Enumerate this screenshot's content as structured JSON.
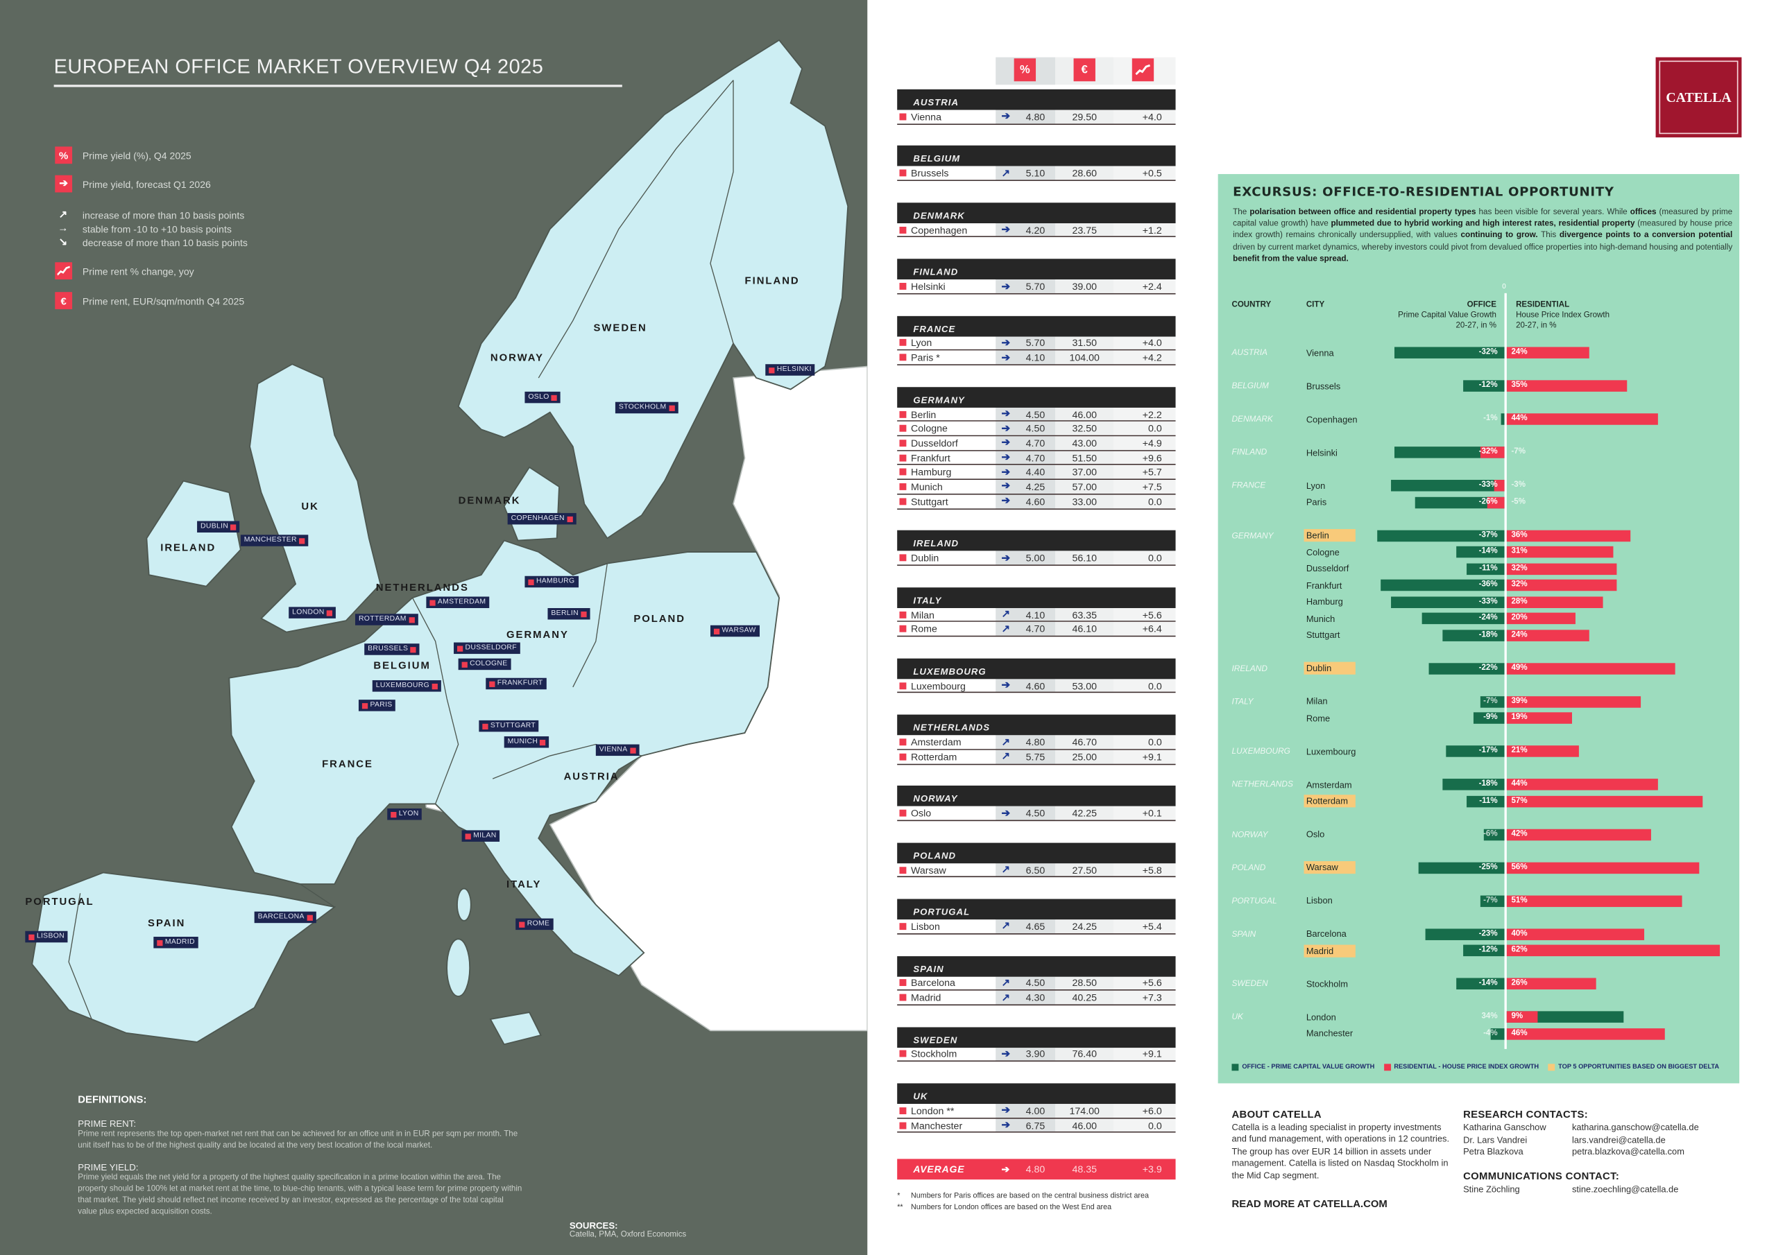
{
  "header": {
    "title": "EUROPEAN OFFICE MARKET OVERVIEW Q4 2025",
    "logo_text": "CATELLA"
  },
  "legend": {
    "prime_yield": {
      "icon": "%",
      "label": "Prime yield (%), Q4 2025"
    },
    "forecast": {
      "icon": "arrow-right-icon",
      "label": "Prime yield, forecast Q1 2026"
    },
    "increase": "increase of more than 10 basis points",
    "stable": "stable from -10 to +10 basis points",
    "decrease": "decrease of more than 10 basis points",
    "rent_change": {
      "icon": "trend-chart-icon",
      "label": "Prime rent % change, yoy"
    },
    "rent": {
      "icon": "€",
      "label": "Prime rent, EUR/sqm/month Q4 2025"
    }
  },
  "map": {
    "countries": [
      "FINLAND",
      "NORWAY",
      "SWEDEN",
      "DENMARK",
      "UK",
      "IRELAND",
      "NETHERLANDS",
      "GERMANY",
      "POLAND",
      "BELGIUM",
      "FRANCE",
      "AUSTRIA",
      "ITALY",
      "PORTUGAL",
      "SPAIN"
    ],
    "cities": [
      "HELSINKI",
      "OSLO",
      "STOCKHOLM",
      "COPENHAGEN",
      "DUBLIN",
      "MANCHESTER",
      "LONDON",
      "AMSTERDAM",
      "ROTTERDAM",
      "HAMBURG",
      "BERLIN",
      "WARSAW",
      "BRUSSELS",
      "DUSSELDORF",
      "COLOGNE",
      "LUXEMBOURG",
      "FRANKFURT",
      "PARIS",
      "STUTTGART",
      "MUNICH",
      "VIENNA",
      "LYON",
      "MILAN",
      "ROME",
      "BARCELONA",
      "MADRID",
      "LISBON"
    ]
  },
  "definitions": {
    "title": "DEFINITIONS:",
    "prime_rent_title": "PRIME RENT:",
    "prime_rent_text": "Prime rent represents the top open-market net rent that can be achieved for an office unit in in EUR per sqm per month. The unit itself has to be of the highest quality and be located at the very best location of the local market.",
    "prime_yield_title": "PRIME YIELD:",
    "prime_yield_text": "Prime yield equals the net yield for a property of the highest quality specification in a prime location within the area. The property should be 100% let at market rent at the time, to blue-chip tenants, with a typical lease term for prime property within that market. The yield should reflect net income received by an investor, expressed as the percentage of the total capital value plus expected acquisition costs."
  },
  "sources": {
    "title": "SOURCES:",
    "text": "Catella, PMA, Oxford Economics"
  },
  "table": {
    "header_icons": [
      "%",
      "€",
      "trend-chart-icon"
    ],
    "groups": [
      {
        "country": "AUSTRIA",
        "rows": [
          {
            "city": "Vienna",
            "arrow": "stable",
            "yield": "4.80",
            "rent": "29.50",
            "change": "+4.0"
          }
        ]
      },
      {
        "country": "BELGIUM",
        "rows": [
          {
            "city": "Brussels",
            "arrow": "up",
            "yield": "5.10",
            "rent": "28.60",
            "change": "+0.5"
          }
        ]
      },
      {
        "country": "DENMARK",
        "rows": [
          {
            "city": "Copenhagen",
            "arrow": "stable",
            "yield": "4.20",
            "rent": "23.75",
            "change": "+1.2"
          }
        ]
      },
      {
        "country": "FINLAND",
        "rows": [
          {
            "city": "Helsinki",
            "arrow": "stable",
            "yield": "5.70",
            "rent": "39.00",
            "change": "+2.4"
          }
        ]
      },
      {
        "country": "FRANCE",
        "rows": [
          {
            "city": "Lyon",
            "arrow": "stable",
            "yield": "5.70",
            "rent": "31.50",
            "change": "+4.0"
          },
          {
            "city": "Paris *",
            "arrow": "stable",
            "yield": "4.10",
            "rent": "104.00",
            "change": "+4.2"
          }
        ]
      },
      {
        "country": "GERMANY",
        "rows": [
          {
            "city": "Berlin",
            "arrow": "stable",
            "yield": "4.50",
            "rent": "46.00",
            "change": "+2.2"
          },
          {
            "city": "Cologne",
            "arrow": "stable",
            "yield": "4.50",
            "rent": "32.50",
            "change": "0.0"
          },
          {
            "city": "Dusseldorf",
            "arrow": "stable",
            "yield": "4.70",
            "rent": "43.00",
            "change": "+4.9"
          },
          {
            "city": "Frankfurt",
            "arrow": "stable",
            "yield": "4.70",
            "rent": "51.50",
            "change": "+9.6"
          },
          {
            "city": "Hamburg",
            "arrow": "stable",
            "yield": "4.40",
            "rent": "37.00",
            "change": "+5.7"
          },
          {
            "city": "Munich",
            "arrow": "stable",
            "yield": "4.25",
            "rent": "57.00",
            "change": "+7.5"
          },
          {
            "city": "Stuttgart",
            "arrow": "stable",
            "yield": "4.60",
            "rent": "33.00",
            "change": "0.0"
          }
        ]
      },
      {
        "country": "IRELAND",
        "rows": [
          {
            "city": "Dublin",
            "arrow": "stable",
            "yield": "5.00",
            "rent": "56.10",
            "change": "0.0"
          }
        ]
      },
      {
        "country": "ITALY",
        "rows": [
          {
            "city": "Milan",
            "arrow": "up",
            "yield": "4.10",
            "rent": "63.35",
            "change": "+5.6"
          },
          {
            "city": "Rome",
            "arrow": "up",
            "yield": "4.70",
            "rent": "46.10",
            "change": "+6.4"
          }
        ]
      },
      {
        "country": "LUXEMBOURG",
        "rows": [
          {
            "city": "Luxembourg",
            "arrow": "stable",
            "yield": "4.60",
            "rent": "53.00",
            "change": "0.0"
          }
        ]
      },
      {
        "country": "NETHERLANDS",
        "rows": [
          {
            "city": "Amsterdam",
            "arrow": "up",
            "yield": "4.80",
            "rent": "46.70",
            "change": "0.0"
          },
          {
            "city": "Rotterdam",
            "arrow": "up",
            "yield": "5.75",
            "rent": "25.00",
            "change": "+9.1"
          }
        ]
      },
      {
        "country": "NORWAY",
        "rows": [
          {
            "city": "Oslo",
            "arrow": "stable",
            "yield": "4.50",
            "rent": "42.25",
            "change": "+0.1"
          }
        ]
      },
      {
        "country": "POLAND",
        "rows": [
          {
            "city": "Warsaw",
            "arrow": "up",
            "yield": "6.50",
            "rent": "27.50",
            "change": "+5.8"
          }
        ]
      },
      {
        "country": "PORTUGAL",
        "rows": [
          {
            "city": "Lisbon",
            "arrow": "up",
            "yield": "4.65",
            "rent": "24.25",
            "change": "+5.4"
          }
        ]
      },
      {
        "country": "SPAIN",
        "rows": [
          {
            "city": "Barcelona",
            "arrow": "up",
            "yield": "4.50",
            "rent": "28.50",
            "change": "+5.6"
          },
          {
            "city": "Madrid",
            "arrow": "up",
            "yield": "4.30",
            "rent": "40.25",
            "change": "+7.3"
          }
        ]
      },
      {
        "country": "SWEDEN",
        "rows": [
          {
            "city": "Stockholm",
            "arrow": "stable",
            "yield": "3.90",
            "rent": "76.40",
            "change": "+9.1"
          }
        ]
      },
      {
        "country": "UK",
        "rows": [
          {
            "city": "London **",
            "arrow": "stable",
            "yield": "4.00",
            "rent": "174.00",
            "change": "+6.0"
          },
          {
            "city": "Manchester",
            "arrow": "stable",
            "yield": "6.75",
            "rent": "46.00",
            "change": "0.0"
          }
        ]
      }
    ],
    "average": {
      "label": "AVERAGE",
      "arrow": "stable",
      "yield": "4.80",
      "rent": "48.35",
      "change": "+3.9"
    },
    "footnotes": [
      {
        "mark": "*",
        "text": "Numbers for Paris offices are based on the central business district area"
      },
      {
        "mark": "**",
        "text": "Numbers for London offices are based on the West End area"
      }
    ]
  },
  "excursus": {
    "title": "EXCURSUS: OFFICE-TO-RESIDENTIAL OPPORTUNITY",
    "text_parts": [
      "The ",
      "polarisation between office and residential property types",
      " has been visible for several years. While ",
      "offices",
      " (measured by prime capital value growth) have ",
      "plummeted due to hybrid working and high interest rates, residential property",
      " (measured by house price index growth) remains chronically undersupplied, with values ",
      "continuing to grow.",
      " This ",
      "divergence points to a conversion potential",
      " driven by current market dynamics, whereby investors could pivot from devalued office properties into high-demand housing and potentially ",
      "benefit from the value spread."
    ]
  },
  "chart_data": {
    "type": "bar",
    "title": "EXCURSUS: OFFICE-TO-RESIDENTIAL OPPORTUNITY",
    "columns": {
      "country": "COUNTRY",
      "city": "CITY",
      "office_title": "OFFICE",
      "office_sub": "Prime Capital Value Growth",
      "office_unit": "20-27, in %",
      "res_title": "RESIDENTIAL",
      "res_sub": "House Price Index Growth",
      "res_unit": "20-27, in %"
    },
    "axis_zero": "0",
    "unit": "%",
    "series": [
      {
        "name": "OFFICE - PRIME CAPITAL VALUE GROWTH",
        "color": "#176d4b"
      },
      {
        "name": "RESIDENTIAL - HOUSE PRICE INDEX GROWTH",
        "color": "#f0384f"
      },
      {
        "name": "TOP 5 OPPORTUNITIES BASED ON BIGGEST DELTA",
        "color": "#f8ca7a"
      }
    ],
    "groups": [
      {
        "country": "AUSTRIA",
        "cities": [
          {
            "city": "Vienna",
            "office": -32,
            "residential": 24,
            "top5": false
          }
        ]
      },
      {
        "country": "BELGIUM",
        "cities": [
          {
            "city": "Brussels",
            "office": -12,
            "residential": 35,
            "top5": false
          }
        ]
      },
      {
        "country": "DENMARK",
        "cities": [
          {
            "city": "Copenhagen",
            "office": -1,
            "residential": 44,
            "top5": false
          }
        ]
      },
      {
        "country": "FINLAND",
        "cities": [
          {
            "city": "Helsinki",
            "office": -32,
            "residential": -7,
            "top5": false
          }
        ]
      },
      {
        "country": "FRANCE",
        "cities": [
          {
            "city": "Lyon",
            "office": -33,
            "residential": -3,
            "top5": false
          },
          {
            "city": "Paris",
            "office": -26,
            "residential": -5,
            "top5": false
          }
        ]
      },
      {
        "country": "GERMANY",
        "cities": [
          {
            "city": "Berlin",
            "office": -37,
            "residential": 36,
            "top5": true
          },
          {
            "city": "Cologne",
            "office": -14,
            "residential": 31,
            "top5": false
          },
          {
            "city": "Dusseldorf",
            "office": -11,
            "residential": 32,
            "top5": false
          },
          {
            "city": "Frankfurt",
            "office": -36,
            "residential": 32,
            "top5": false
          },
          {
            "city": "Hamburg",
            "office": -33,
            "residential": 28,
            "top5": false
          },
          {
            "city": "Munich",
            "office": -24,
            "residential": 20,
            "top5": false
          },
          {
            "city": "Stuttgart",
            "office": -18,
            "residential": 24,
            "top5": false
          }
        ]
      },
      {
        "country": "IRELAND",
        "cities": [
          {
            "city": "Dublin",
            "office": -22,
            "residential": 49,
            "top5": true
          }
        ]
      },
      {
        "country": "ITALY",
        "cities": [
          {
            "city": "Milan",
            "office": -7,
            "residential": 39,
            "top5": false
          },
          {
            "city": "Rome",
            "office": -9,
            "residential": 19,
            "top5": false
          }
        ]
      },
      {
        "country": "LUXEMBOURG",
        "cities": [
          {
            "city": "Luxembourg",
            "office": -17,
            "residential": 21,
            "top5": false
          }
        ]
      },
      {
        "country": "NETHERLANDS",
        "cities": [
          {
            "city": "Amsterdam",
            "office": -18,
            "residential": 44,
            "top5": false
          },
          {
            "city": "Rotterdam",
            "office": -11,
            "residential": 57,
            "top5": true
          }
        ]
      },
      {
        "country": "NORWAY",
        "cities": [
          {
            "city": "Oslo",
            "office": -6,
            "residential": 42,
            "top5": false
          }
        ]
      },
      {
        "country": "POLAND",
        "cities": [
          {
            "city": "Warsaw",
            "office": -25,
            "residential": 56,
            "top5": true
          }
        ]
      },
      {
        "country": "PORTUGAL",
        "cities": [
          {
            "city": "Lisbon",
            "office": -7,
            "residential": 51,
            "top5": false
          }
        ]
      },
      {
        "country": "SPAIN",
        "cities": [
          {
            "city": "Barcelona",
            "office": -23,
            "residential": 40,
            "top5": false
          },
          {
            "city": "Madrid",
            "office": -12,
            "residential": 62,
            "top5": true
          }
        ]
      },
      {
        "country": "SWEDEN",
        "cities": [
          {
            "city": "Stockholm",
            "office": -14,
            "residential": 26,
            "top5": false
          }
        ]
      },
      {
        "country": "UK",
        "cities": [
          {
            "city": "London",
            "office": 34,
            "residential": 9,
            "top5": false
          },
          {
            "city": "Manchester",
            "office": -4,
            "residential": 46,
            "top5": false
          }
        ]
      }
    ]
  },
  "about": {
    "title": "ABOUT CATELLA",
    "text": "Catella is a leading specialist in property investments and fund management, with operations in 12 countries. The group has over EUR 14 billion in assets under management. Catella is listed on Nasdaq Stockholm in the Mid Cap segment.",
    "read_more": "READ MORE AT CATELLA.COM"
  },
  "contacts": {
    "research_title": "RESEARCH CONTACTS:",
    "research": [
      {
        "name": "Katharina Ganschow",
        "email": "katharina.ganschow@catella.de"
      },
      {
        "name": "Dr. Lars Vandrei",
        "email": "lars.vandrei@catella.de"
      },
      {
        "name": "Petra Blazkova",
        "email": "petra.blazkova@catella.com"
      }
    ],
    "comms_title": "COMMUNICATIONS CONTACT:",
    "comms": [
      {
        "name": "Stine Zöchling",
        "email": "stine.zoechling@catella.de"
      }
    ]
  }
}
